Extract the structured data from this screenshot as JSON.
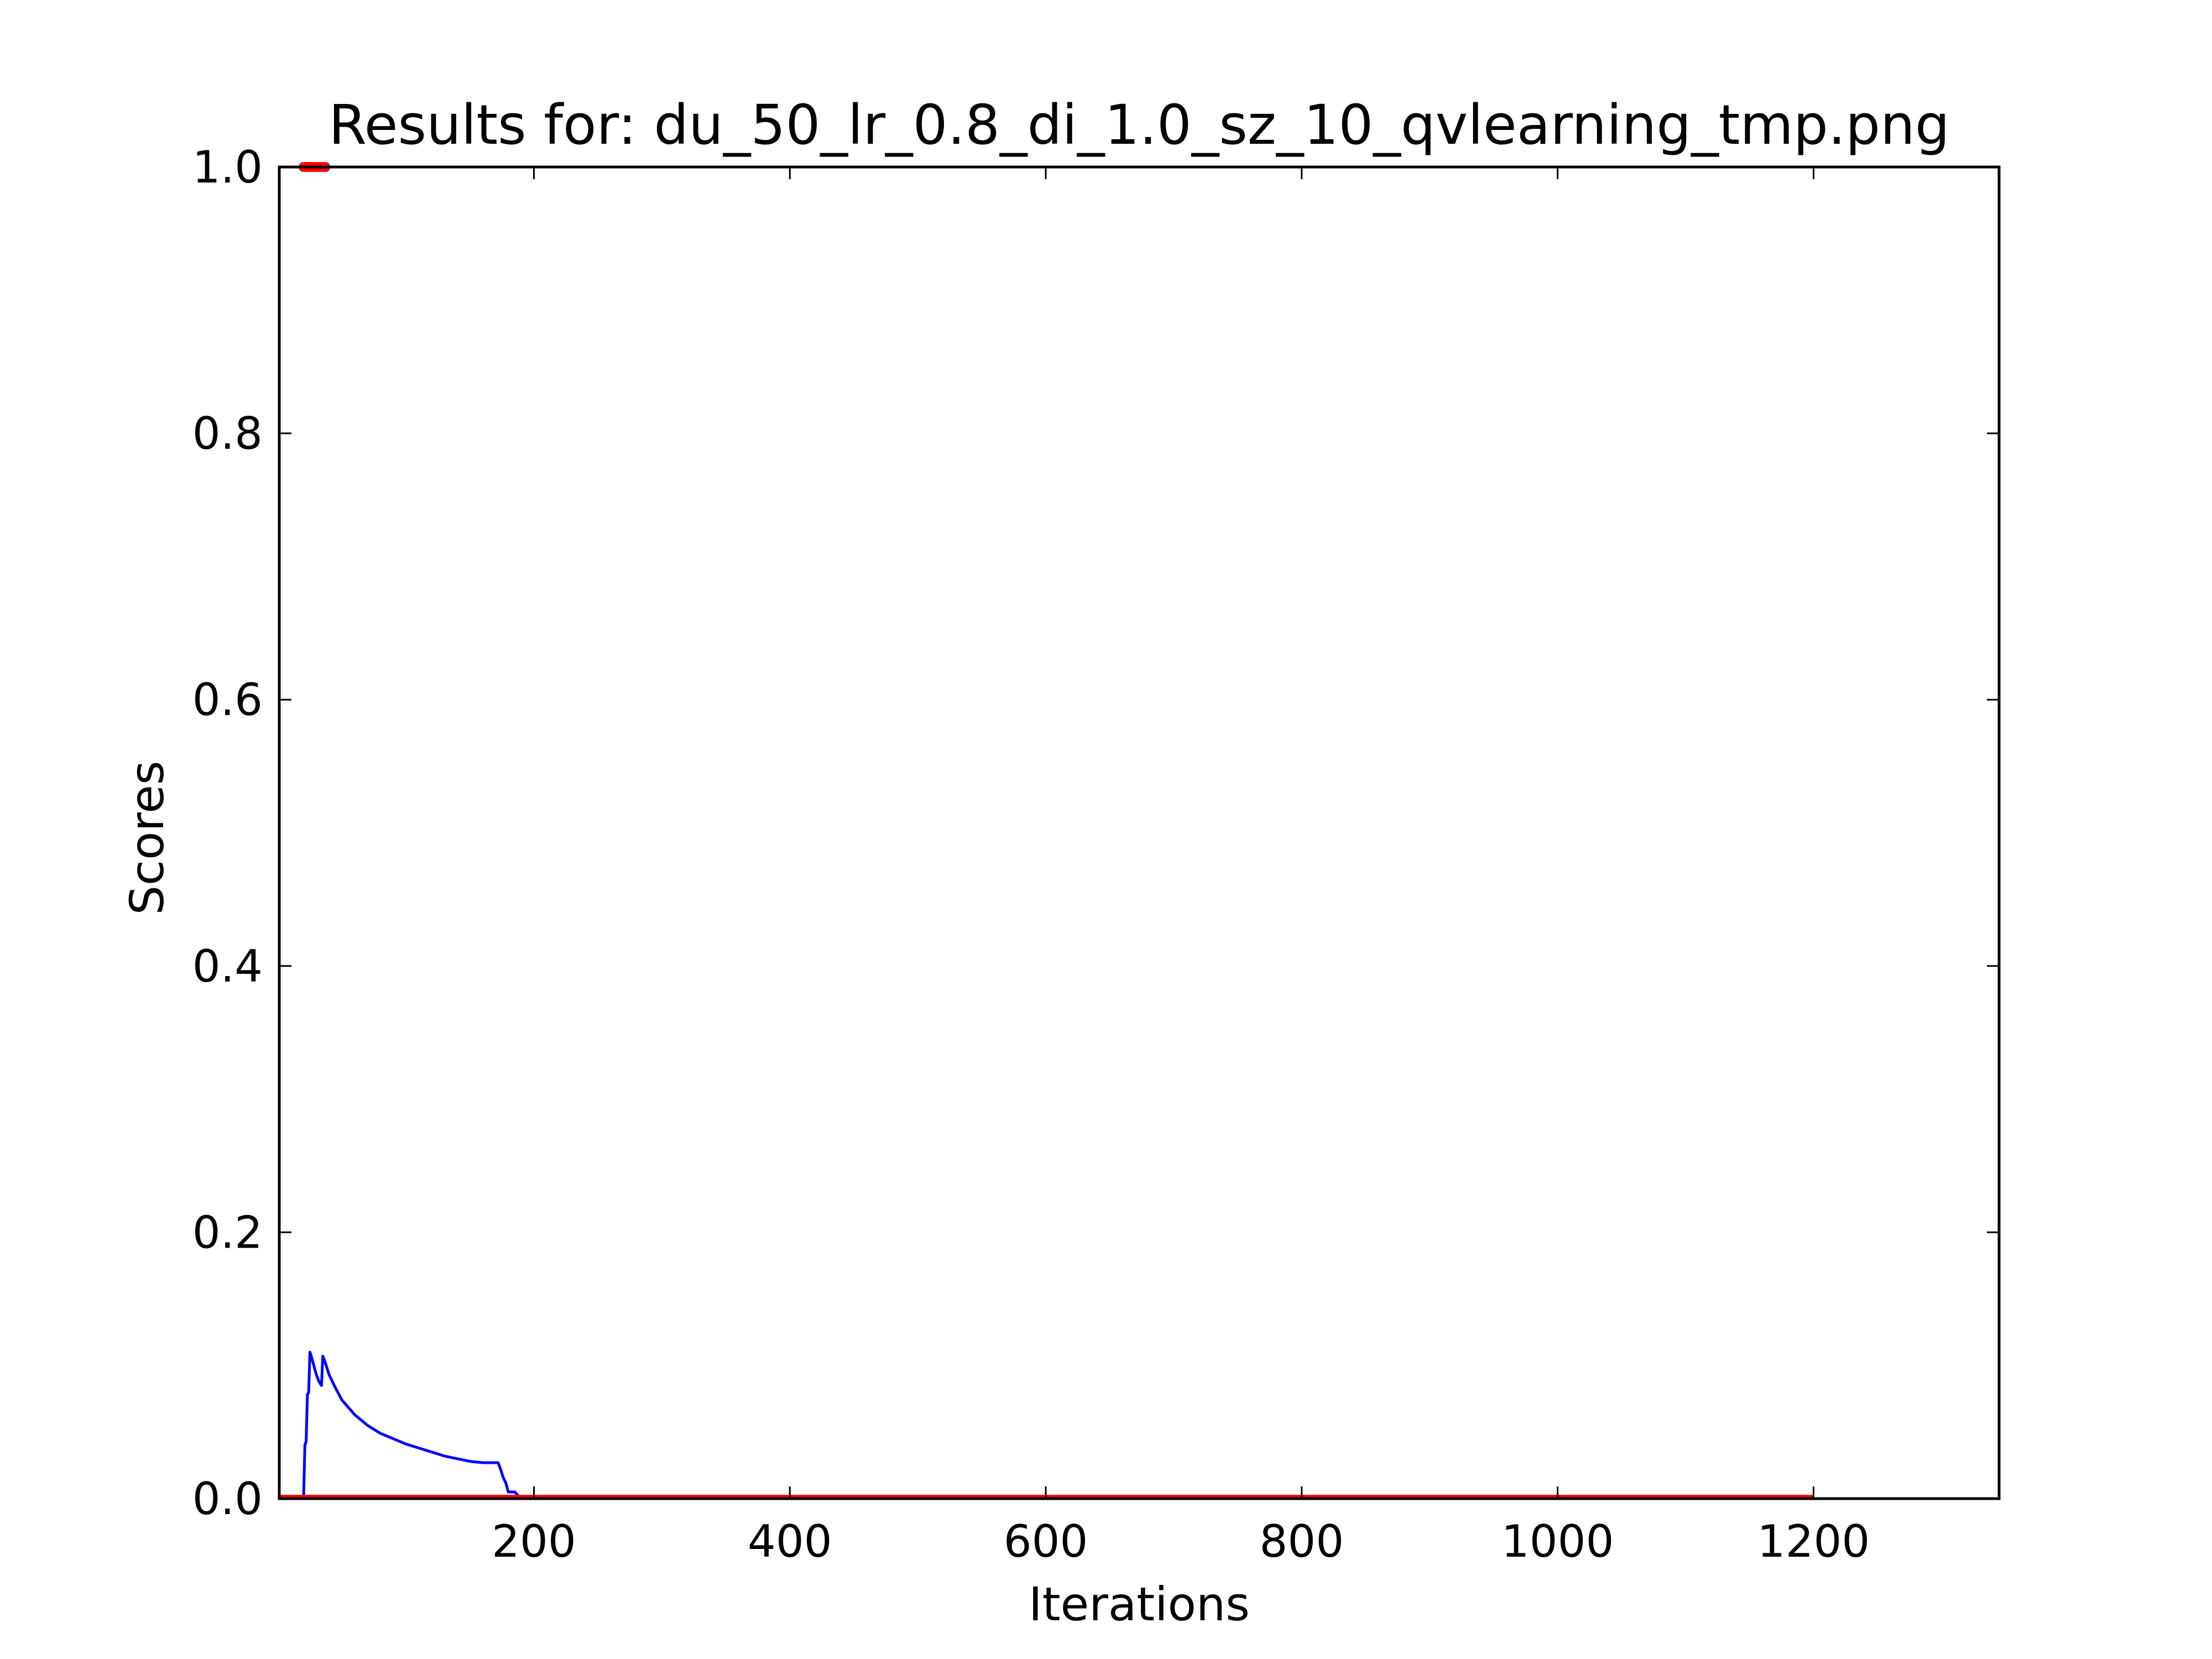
{
  "chart_data": {
    "type": "line",
    "title": "Results for: du_50_lr_0.8_di_1.0_sz_10_qvlearning_tmp.png",
    "xlabel": "Iterations",
    "ylabel": "Scores",
    "xlim": [
      1,
      1345
    ],
    "ylim": [
      0.0,
      1.0
    ],
    "x_ticks": [
      200,
      400,
      600,
      800,
      1000,
      1200
    ],
    "x_tick_labels": [
      "200",
      "400",
      "600",
      "800",
      "1000",
      "1200"
    ],
    "y_ticks": [
      0.0,
      0.2,
      0.4,
      0.6,
      0.8,
      1.0
    ],
    "y_tick_labels": [
      "0.0",
      "0.2",
      "0.4",
      "0.6",
      "0.8",
      "1.0"
    ],
    "grid": false,
    "series": [
      {
        "color": "#0000ff",
        "style": "line",
        "x": [
          1,
          20,
          21,
          22,
          23,
          24,
          25,
          26,
          28,
          30,
          32,
          34,
          35,
          36,
          38,
          40,
          45,
          50,
          60,
          70,
          80,
          90,
          100,
          110,
          120,
          130,
          140,
          150,
          160,
          170,
          172,
          174,
          176,
          178,
          180,
          182,
          185,
          190,
          1200
        ],
        "y": [
          0.0,
          0.0,
          0.04,
          0.043,
          0.078,
          0.08,
          0.11,
          0.107,
          0.1,
          0.093,
          0.088,
          0.085,
          0.107,
          0.105,
          0.099,
          0.093,
          0.083,
          0.074,
          0.063,
          0.055,
          0.049,
          0.045,
          0.041,
          0.038,
          0.035,
          0.032,
          0.03,
          0.028,
          0.027,
          0.027,
          0.027,
          0.022,
          0.016,
          0.012,
          0.005,
          0.005,
          0.005,
          0.0,
          0.0
        ]
      },
      {
        "color": "#ff0000",
        "style": "line-with-markers",
        "x": [
          1,
          1200
        ],
        "y": [
          0.001,
          0.001
        ],
        "markers_x": [
          20,
          21,
          22,
          23,
          24,
          25,
          27,
          29,
          31,
          33,
          35,
          37
        ],
        "markers_y": [
          1.0,
          1.0,
          1.0,
          1.0,
          1.0,
          1.0,
          1.0,
          1.0,
          1.0,
          1.0,
          1.0,
          1.0
        ]
      }
    ]
  }
}
